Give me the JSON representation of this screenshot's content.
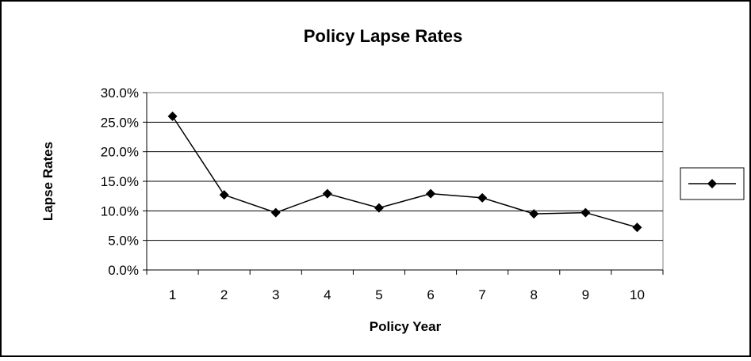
{
  "chart_data": {
    "type": "line",
    "title": "Policy Lapse Rates",
    "xlabel": "Policy Year",
    "ylabel": "Lapse Rates",
    "categories": [
      "1",
      "2",
      "3",
      "4",
      "5",
      "6",
      "7",
      "8",
      "9",
      "10"
    ],
    "series": [
      {
        "values": [
          0.26,
          0.127,
          0.097,
          0.129,
          0.105,
          0.129,
          0.122,
          0.095,
          0.097,
          0.072
        ],
        "color": "#000000",
        "marker": "diamond"
      }
    ],
    "y_ticks": [
      "0.0%",
      "5.0%",
      "10.0%",
      "15.0%",
      "20.0%",
      "25.0%",
      "30.0%"
    ],
    "ylim": [
      0,
      0.3
    ],
    "y_grid": true,
    "legend": {
      "position": "right",
      "entries": [
        ""
      ]
    }
  }
}
